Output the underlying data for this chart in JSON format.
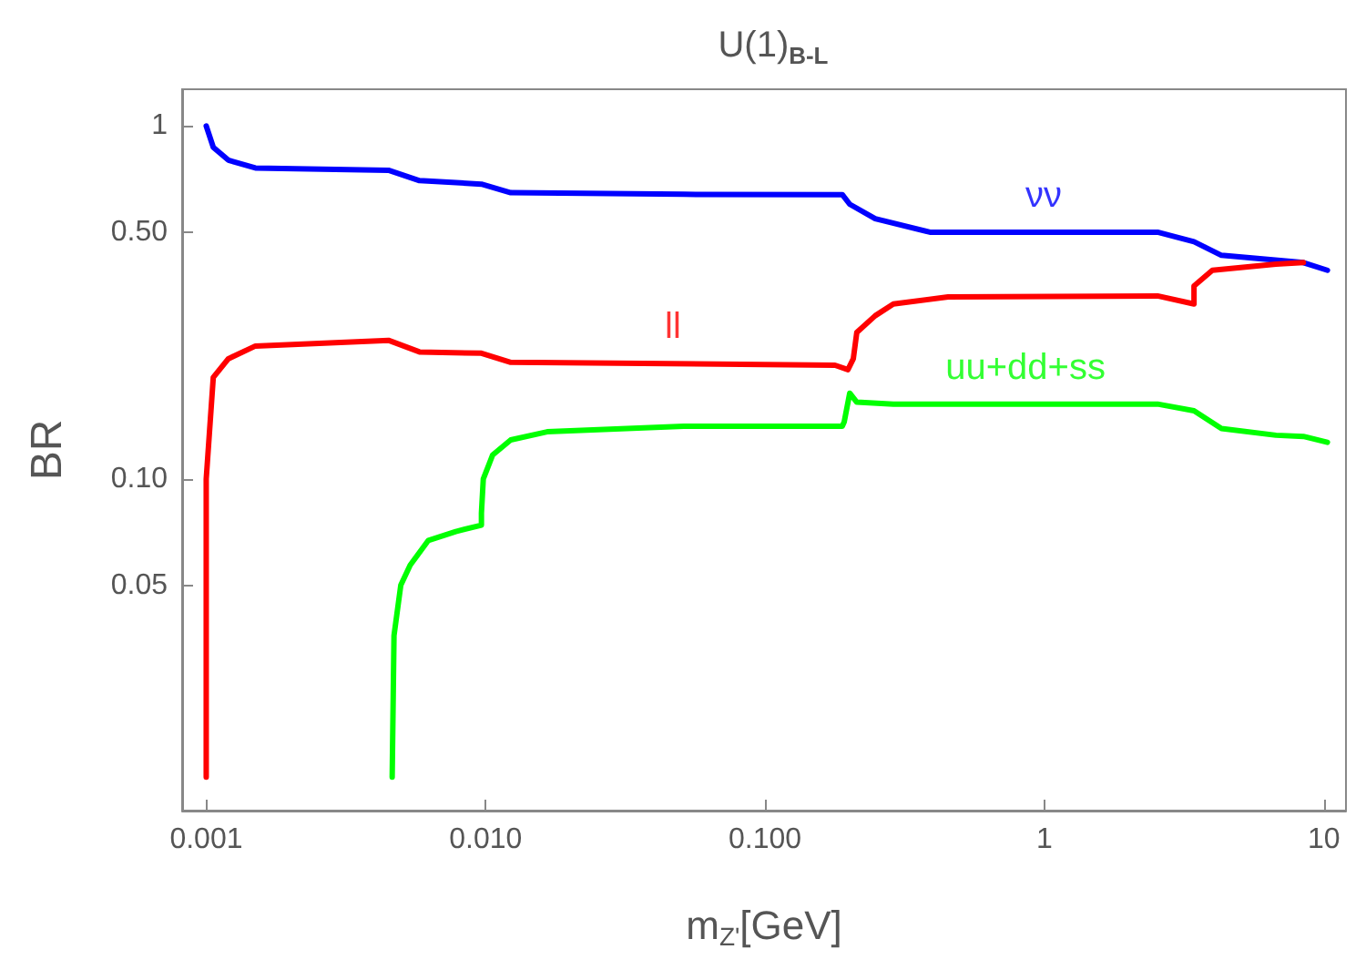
{
  "chart_data": {
    "type": "line",
    "title": "U(1)$_{B-L}$",
    "xlabel": "m$_{Z'}$[GeV]",
    "ylabel": "BR",
    "log": "xy",
    "grid": false,
    "legend": false,
    "xlim": [
      0.00082,
      12
    ],
    "xticks": [
      {
        "value": 0.001,
        "label": "0.001"
      },
      {
        "value": 0.01,
        "label": "0.010"
      },
      {
        "value": 0.1,
        "label": "0.100"
      },
      1,
      10
    ],
    "ylim": [
      0.0115,
      1.27
    ],
    "yticks": [
      0.05,
      {
        "value": 0.1,
        "label": "0.10"
      },
      {
        "value": 0.5,
        "label": "0.50"
      },
      1
    ],
    "series": [
      {
        "name": "νν",
        "color": "#0000ff",
        "x": [
          0.001,
          0.00106,
          0.0012,
          0.0015,
          0.00449,
          0.0058,
          0.00966,
          0.0123,
          0.0512,
          0.189,
          0.201,
          0.248,
          0.389,
          2.54,
          3.43,
          4.3,
          8.45,
          10.3
        ],
        "values": [
          1.0,
          0.87,
          0.8,
          0.76,
          0.749,
          0.7,
          0.684,
          0.647,
          0.64,
          0.639,
          0.6,
          0.546,
          0.5,
          0.5,
          0.47,
          0.43,
          0.41,
          0.39
        ]
      },
      {
        "name": "ll",
        "color": "#ff0000",
        "x": [
          0.001,
          0.001,
          0.00106,
          0.0012,
          0.0015,
          0.00449,
          0.0058,
          0.00966,
          0.0123,
          0.178,
          0.198,
          0.207,
          0.213,
          0.248,
          0.288,
          0.452,
          2.54,
          3.43,
          3.43,
          3.99,
          6.74,
          8.45
        ],
        "values": [
          0.0143,
          0.1,
          0.194,
          0.219,
          0.238,
          0.247,
          0.229,
          0.227,
          0.214,
          0.21,
          0.204,
          0.219,
          0.26,
          0.29,
          0.313,
          0.328,
          0.33,
          0.313,
          0.352,
          0.39,
          0.406,
          0.41
        ]
      },
      {
        "name": "uu+dd+ss",
        "color": "#00ff00",
        "x": [
          0.00463,
          0.0047,
          0.00497,
          0.00537,
          0.00624,
          0.00782,
          0.00966,
          0.00966,
          0.00981,
          0.0106,
          0.0123,
          0.0166,
          0.0512,
          0.189,
          0.192,
          0.201,
          0.213,
          0.288,
          2.54,
          3.43,
          4.3,
          6.74,
          8.45,
          10.3
        ],
        "values": [
          0.0143,
          0.036,
          0.05,
          0.057,
          0.067,
          0.071,
          0.074,
          0.08,
          0.1,
          0.117,
          0.129,
          0.136,
          0.141,
          0.141,
          0.145,
          0.175,
          0.165,
          0.163,
          0.163,
          0.156,
          0.139,
          0.133,
          0.132,
          0.127
        ]
      }
    ]
  }
}
